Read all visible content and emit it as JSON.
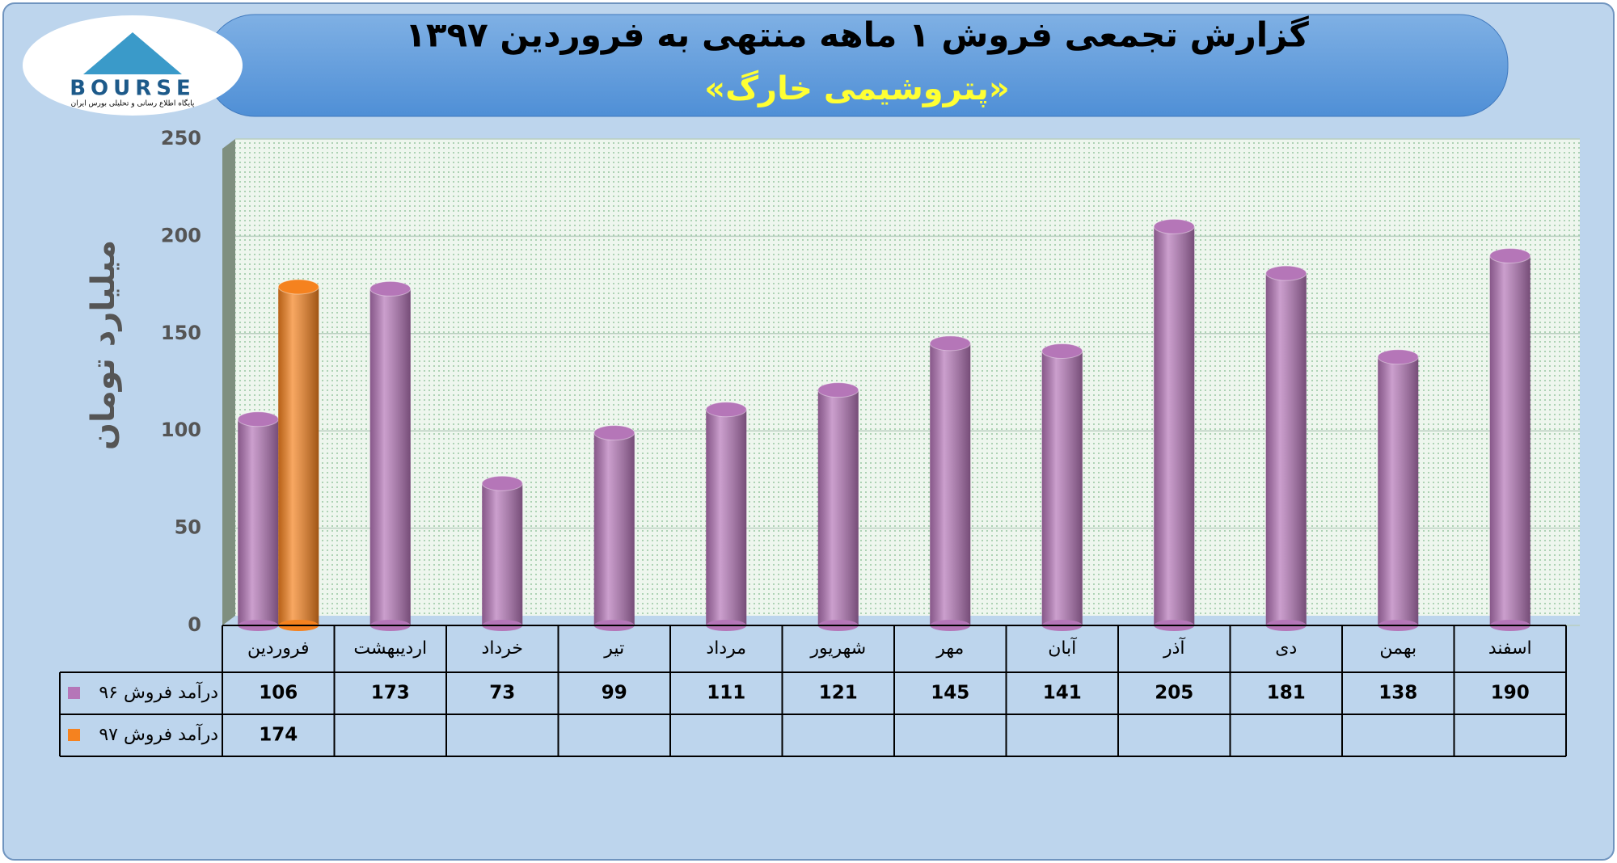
{
  "logo": {
    "text": "BOURSE",
    "caption": "پایگاه اطلاع رسانی و تحلیلی بورس ایران"
  },
  "chart_data": {
    "type": "bar",
    "title": "گزارش تجمعی فروش ۱ ماهه منتهی به فروردین ۱۳۹۷",
    "subtitle": "«پتروشیمی خارگ»",
    "y_label": "میلیارد تومان",
    "categories": [
      "فروردین",
      "اردیبهشت",
      "خرداد",
      "تیر",
      "مرداد",
      "شهریور",
      "مهر",
      "آبان",
      "آذر",
      "دی",
      "بهمن",
      "اسفند"
    ],
    "series": [
      {
        "name": "درآمد فروش ۹۶",
        "color": "#b576b8",
        "values": [
          106,
          173,
          73,
          99,
          111,
          121,
          145,
          141,
          205,
          181,
          138,
          190
        ]
      },
      {
        "name": "درآمد فروش ۹۷",
        "color": "#f5821f",
        "values": [
          174,
          null,
          null,
          null,
          null,
          null,
          null,
          null,
          null,
          null,
          null,
          null
        ]
      }
    ],
    "ylim": [
      0,
      250
    ],
    "yticks": [
      0,
      50,
      100,
      150,
      200,
      250
    ],
    "grid": true
  }
}
